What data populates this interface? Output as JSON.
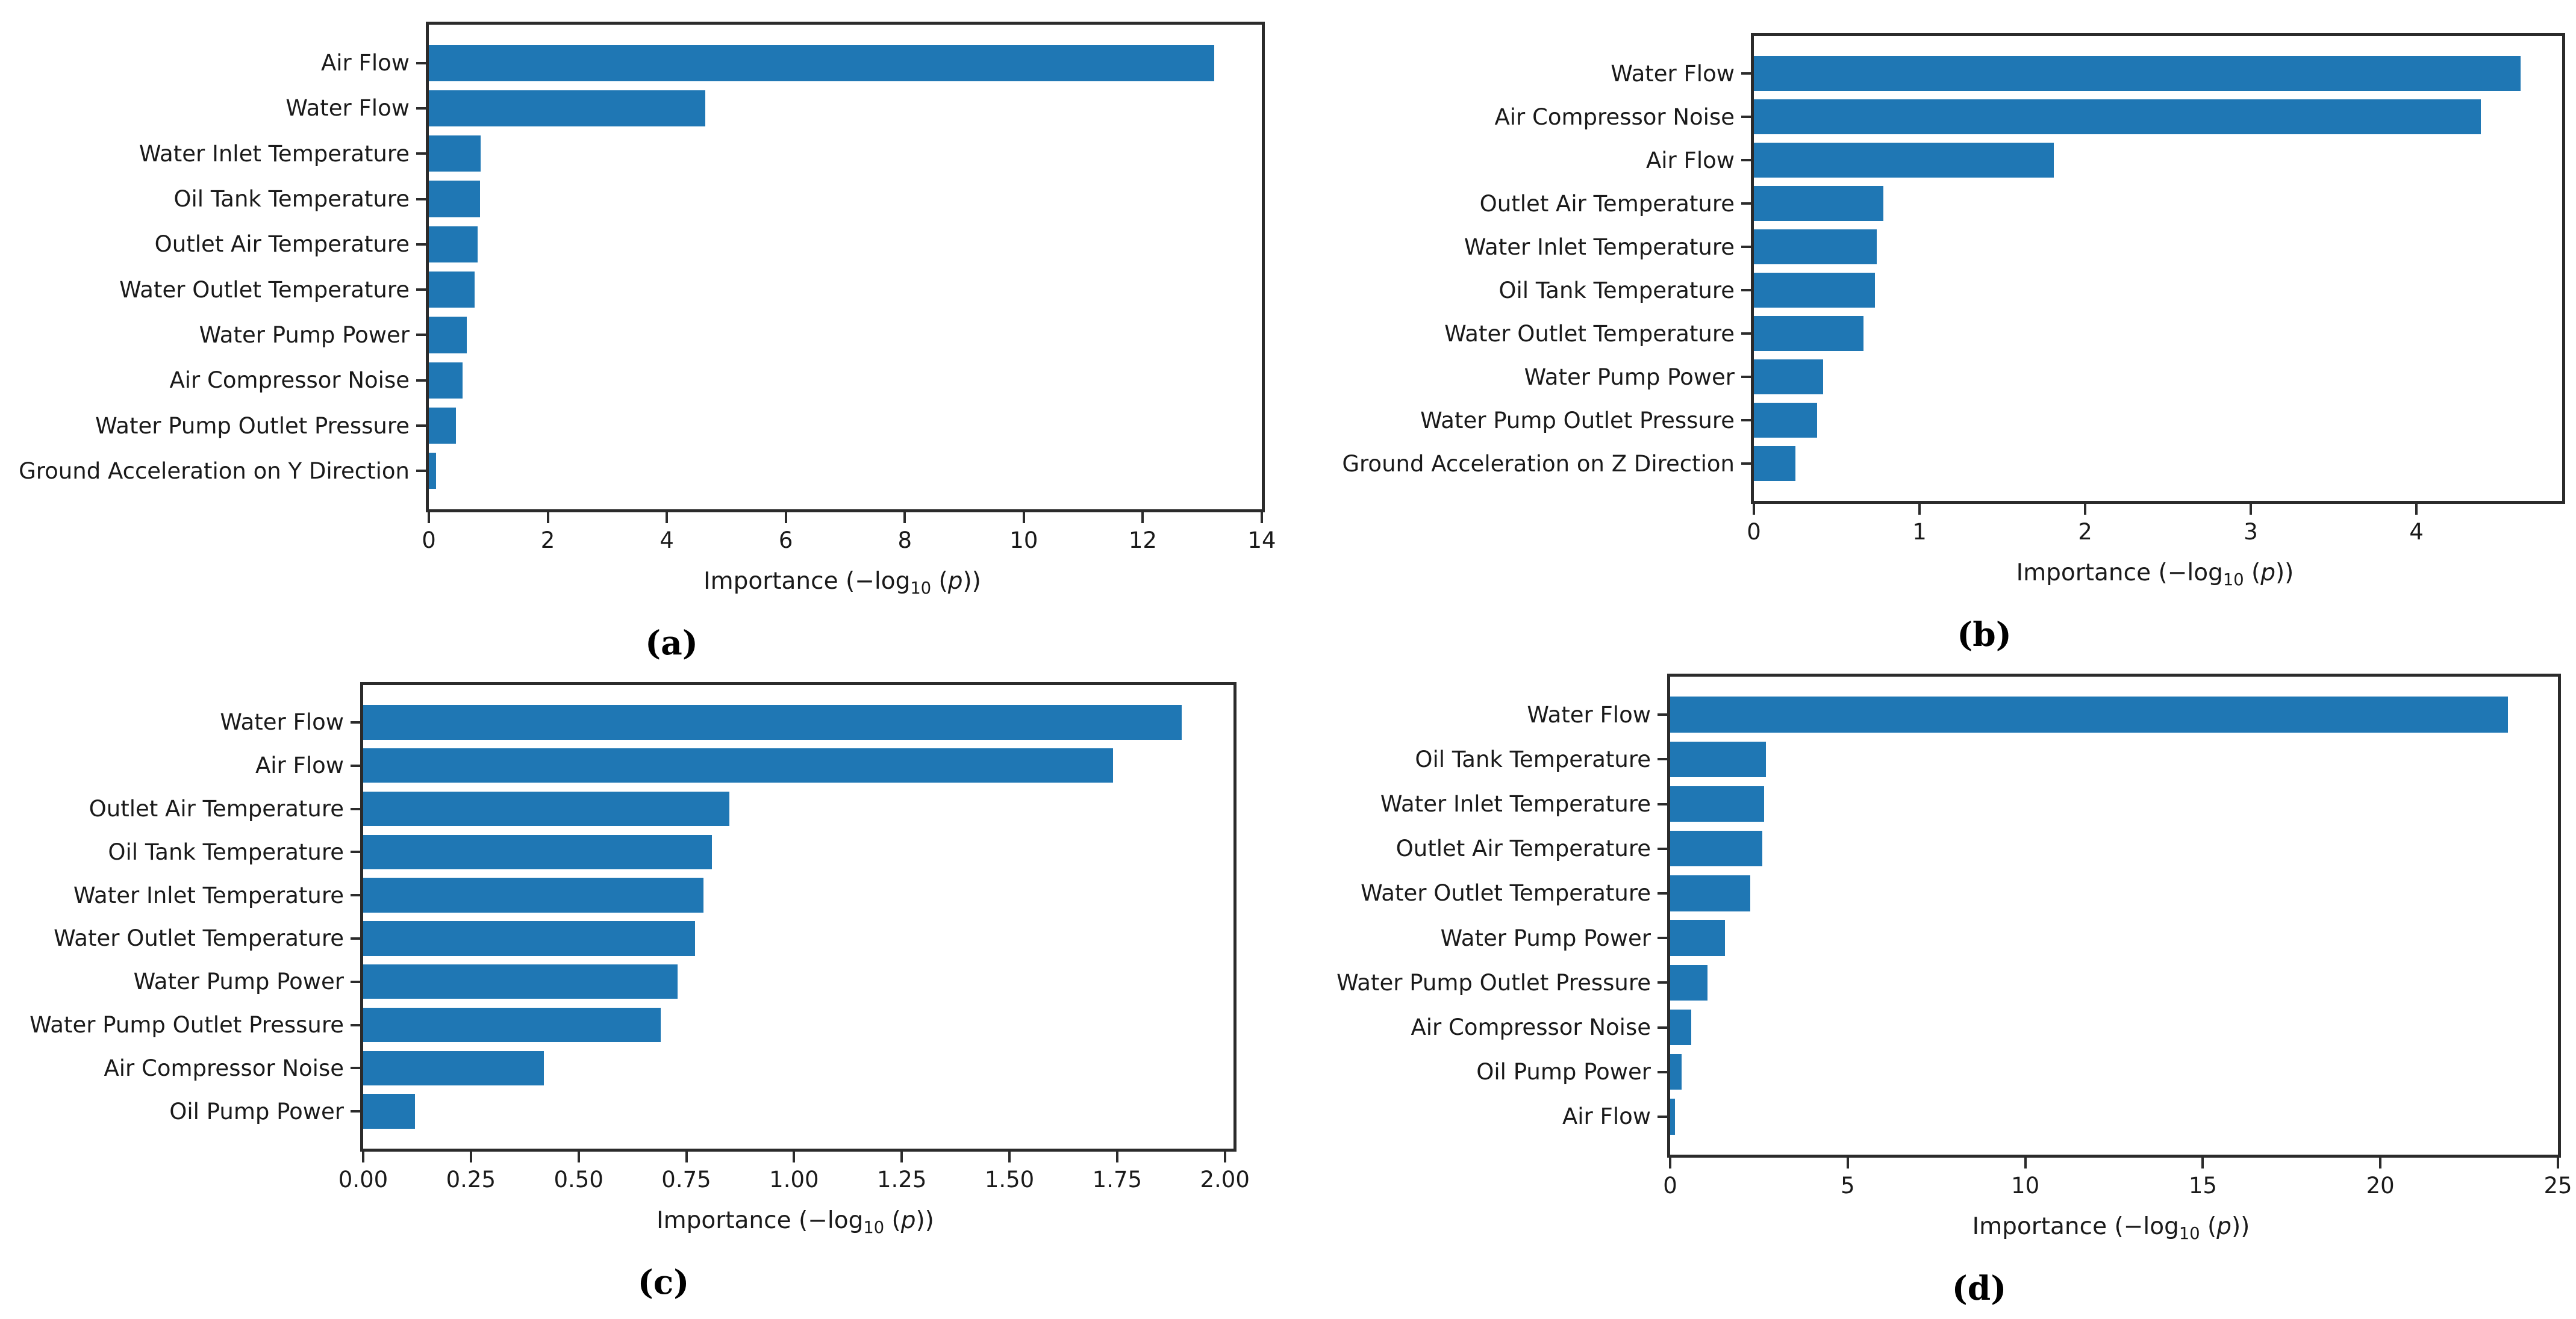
{
  "figure": {
    "background": "#ffffff",
    "text_color": "#1a1a1a",
    "spine_color": "#2b2b2b",
    "accent": "#1f77b4"
  },
  "chart_data": [
    {
      "type": "bar",
      "orientation": "horizontal",
      "panel": "a",
      "caption": "(a)",
      "xlabel": "Importance (−log10 (p))",
      "xlabel_parts": {
        "pre": "Importance (−log",
        "sub": "10",
        "mid": " (",
        "var": "p",
        "post": "))"
      },
      "categories": [
        "Air Flow",
        "Water Flow",
        "Water Inlet Temperature",
        "Oil Tank Temperature",
        "Outlet Air Temperature",
        "Water Outlet Temperature",
        "Water Pump Power",
        "Air Compressor Noise",
        "Water Pump Outlet Pressure",
        "Ground Acceleration on Y Direction"
      ],
      "values": [
        13.2,
        4.65,
        0.87,
        0.86,
        0.82,
        0.77,
        0.64,
        0.57,
        0.46,
        0.12
      ],
      "xlim": [
        0,
        14
      ],
      "xticks": [
        {
          "v": 0,
          "label": "0"
        },
        {
          "v": 2,
          "label": "2"
        },
        {
          "v": 4,
          "label": "4"
        },
        {
          "v": 6,
          "label": "6"
        },
        {
          "v": 8,
          "label": "8"
        },
        {
          "v": 10,
          "label": "10"
        },
        {
          "v": 12,
          "label": "12"
        },
        {
          "v": 14,
          "label": "14"
        }
      ],
      "bar_color": "#1f77b4",
      "grid": false
    },
    {
      "type": "bar",
      "orientation": "horizontal",
      "panel": "b",
      "caption": "(b)",
      "xlabel": "Importance (−log10 (p))",
      "xlabel_parts": {
        "pre": "Importance (−log",
        "sub": "10",
        "mid": " (",
        "var": "p",
        "post": "))"
      },
      "categories": [
        "Water Flow",
        "Air Compressor Noise",
        "Air Flow",
        "Outlet Air Temperature",
        "Water Inlet Temperature",
        "Oil Tank Temperature",
        "Water Outlet Temperature",
        "Water Pump Power",
        "Water Pump Outlet Pressure",
        "Ground Acceleration on Z Direction"
      ],
      "values": [
        4.63,
        4.39,
        1.81,
        0.78,
        0.74,
        0.73,
        0.66,
        0.42,
        0.38,
        0.25
      ],
      "xlim": [
        0,
        4.88
      ],
      "xticks": [
        {
          "v": 0,
          "label": "0"
        },
        {
          "v": 1,
          "label": "1"
        },
        {
          "v": 2,
          "label": "2"
        },
        {
          "v": 3,
          "label": "3"
        },
        {
          "v": 4,
          "label": "4"
        }
      ],
      "bar_color": "#1f77b4",
      "grid": false
    },
    {
      "type": "bar",
      "orientation": "horizontal",
      "panel": "c",
      "caption": "(c)",
      "xlabel": "Importance (−log10 (p))",
      "xlabel_parts": {
        "pre": "Importance (−log",
        "sub": "10",
        "mid": " (",
        "var": "p",
        "post": "))"
      },
      "categories": [
        "Water Flow",
        "Air Flow",
        "Outlet Air Temperature",
        "Oil Tank Temperature",
        "Water Inlet Temperature",
        "Water Outlet Temperature",
        "Water Pump Power",
        "Water Pump Outlet Pressure",
        "Air Compressor Noise",
        "Oil Pump Power"
      ],
      "values": [
        1.9,
        1.74,
        0.85,
        0.81,
        0.79,
        0.77,
        0.73,
        0.69,
        0.42,
        0.12
      ],
      "xlim": [
        0,
        2.02
      ],
      "xticks": [
        {
          "v": 0,
          "label": "0.00"
        },
        {
          "v": 0.25,
          "label": "0.25"
        },
        {
          "v": 0.5,
          "label": "0.50"
        },
        {
          "v": 0.75,
          "label": "0.75"
        },
        {
          "v": 1.0,
          "label": "1.00"
        },
        {
          "v": 1.25,
          "label": "1.25"
        },
        {
          "v": 1.5,
          "label": "1.50"
        },
        {
          "v": 1.75,
          "label": "1.75"
        },
        {
          "v": 2.0,
          "label": "2.00"
        }
      ],
      "bar_color": "#1f77b4",
      "grid": false
    },
    {
      "type": "bar",
      "orientation": "horizontal",
      "panel": "d",
      "caption": "(d)",
      "xlabel": "Importance (−log10 (p))",
      "xlabel_parts": {
        "pre": "Importance (−log",
        "sub": "10",
        "mid": " (",
        "var": "p",
        "post": "))"
      },
      "categories": [
        "Water Flow",
        "Oil Tank Temperature",
        "Water Inlet Temperature",
        "Outlet Air Temperature",
        "Water Outlet Temperature",
        "Water Pump Power",
        "Water Pump Outlet Pressure",
        "Air Compressor Noise",
        "Oil Pump Power",
        "Air Flow"
      ],
      "values": [
        23.6,
        2.7,
        2.65,
        2.6,
        2.25,
        1.55,
        1.05,
        0.6,
        0.33,
        0.13
      ],
      "xlim": [
        0,
        25
      ],
      "xticks": [
        {
          "v": 0,
          "label": "0"
        },
        {
          "v": 5,
          "label": "5"
        },
        {
          "v": 10,
          "label": "10"
        },
        {
          "v": 15,
          "label": "15"
        },
        {
          "v": 20,
          "label": "20"
        },
        {
          "v": 25,
          "label": "25"
        }
      ],
      "bar_color": "#1f77b4",
      "grid": false
    }
  ]
}
